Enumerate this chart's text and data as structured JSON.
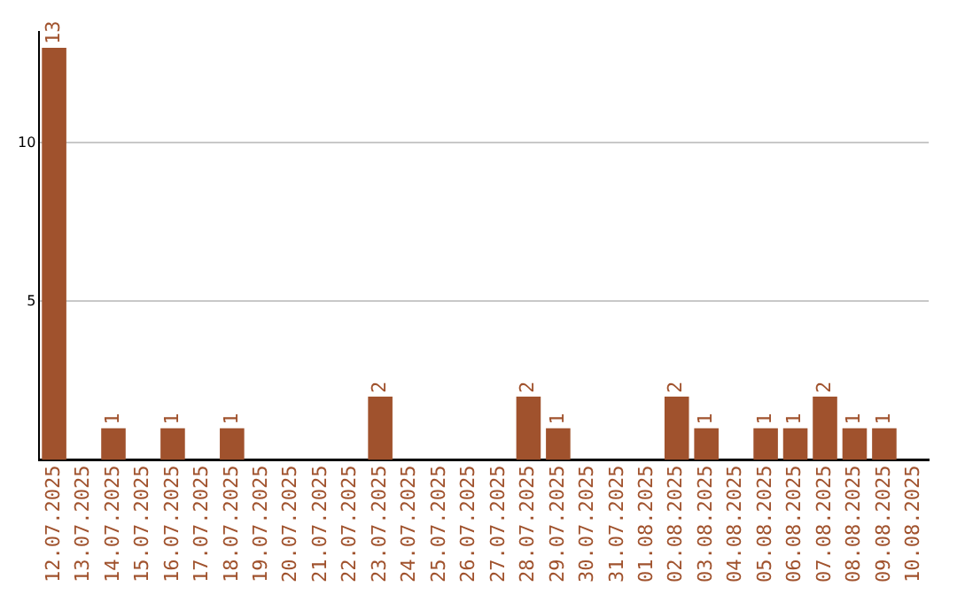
{
  "chart_data": {
    "type": "bar",
    "categories": [
      "12.07.2025",
      "13.07.2025",
      "14.07.2025",
      "15.07.2025",
      "16.07.2025",
      "17.07.2025",
      "18.07.2025",
      "19.07.2025",
      "20.07.2025",
      "21.07.2025",
      "22.07.2025",
      "23.07.2025",
      "24.07.2025",
      "25.07.2025",
      "26.07.2025",
      "27.07.2025",
      "28.07.2025",
      "29.07.2025",
      "30.07.2025",
      "31.07.2025",
      "01.08.2025",
      "02.08.2025",
      "03.08.2025",
      "04.08.2025",
      "05.08.2025",
      "06.08.2025",
      "07.08.2025",
      "08.08.2025",
      "09.08.2025",
      "10.08.2025"
    ],
    "values": [
      13,
      0,
      1,
      0,
      1,
      0,
      1,
      0,
      0,
      0,
      0,
      2,
      0,
      0,
      0,
      0,
      2,
      1,
      0,
      0,
      0,
      2,
      1,
      0,
      1,
      1,
      2,
      1,
      1,
      0
    ],
    "value_labels": [
      "13",
      null,
      "1",
      null,
      "1",
      null,
      "1",
      null,
      null,
      null,
      null,
      "2",
      null,
      null,
      null,
      null,
      "2",
      "1",
      null,
      null,
      null,
      "2",
      "1",
      null,
      "1",
      "1",
      "2",
      "1",
      "1",
      null
    ],
    "color": "#a0522d",
    "ylim": [
      0,
      13.5
    ],
    "yticks": [
      5,
      10
    ],
    "grid": "y"
  }
}
